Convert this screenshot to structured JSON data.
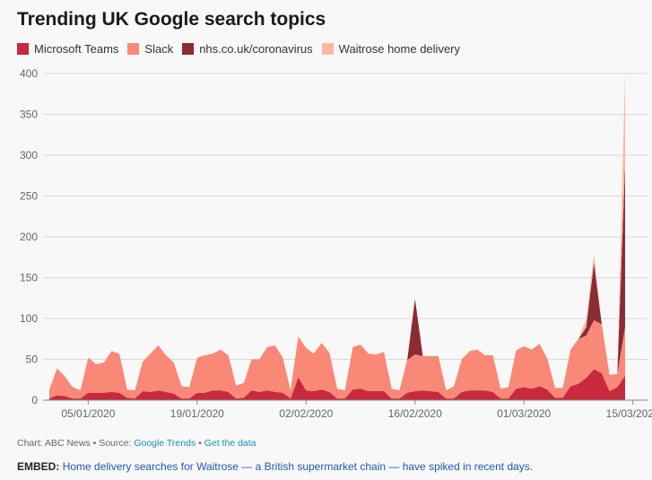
{
  "title": "Trending UK Google search topics",
  "legend": [
    {
      "label": "Microsoft Teams",
      "color": "#c8293d"
    },
    {
      "label": "Slack",
      "color": "#f98877"
    },
    {
      "label": "nhs.co.uk/coronavirus",
      "color": "#8b2b33"
    },
    {
      "label": "Waitrose home delivery",
      "color": "#fbb6a0"
    }
  ],
  "source": {
    "prefix": "Chart: ABC News • Source: ",
    "link1": "Google Trends",
    "sep": " • ",
    "link2": "Get the data"
  },
  "embed": {
    "label": "EMBED:",
    "text": "Home delivery searches for Waitrose — a British supermarket chain — have spiked in recent days."
  },
  "chart_data": {
    "type": "area",
    "stacked": true,
    "title": "Trending UK Google search topics",
    "ylim": [
      0,
      400
    ],
    "yticks": [
      0,
      50,
      100,
      150,
      200,
      250,
      300,
      350,
      400
    ],
    "xtick_labels": [
      "05/01/2020",
      "19/01/2020",
      "02/02/2020",
      "16/02/2020",
      "01/03/2020",
      "15/03/2020"
    ],
    "xtick_index": [
      5,
      19,
      33,
      47,
      61,
      75
    ],
    "x_start": "01/01/2020",
    "x_end": "15/03/2020",
    "grid": true,
    "legend_position": "top-left",
    "series": [
      {
        "name": "Microsoft Teams",
        "color": "#c8293d",
        "values": [
          2,
          6,
          5,
          2,
          2,
          9,
          9,
          9,
          10,
          9,
          3,
          2,
          11,
          10,
          12,
          10,
          8,
          2,
          2,
          9,
          9,
          12,
          12,
          10,
          2,
          3,
          12,
          10,
          12,
          10,
          9,
          2,
          28,
          12,
          11,
          13,
          10,
          2,
          2,
          13,
          14,
          11,
          11,
          11,
          2,
          2,
          9,
          11,
          12,
          11,
          10,
          2,
          2,
          10,
          12,
          12,
          12,
          10,
          2,
          2,
          14,
          16,
          14,
          17,
          13,
          3,
          3,
          17,
          20,
          27,
          38,
          33,
          11,
          16,
          30
        ]
      },
      {
        "name": "Slack",
        "color": "#f98877",
        "values": [
          11,
          33,
          24,
          14,
          10,
          43,
          35,
          37,
          50,
          48,
          10,
          10,
          36,
          47,
          55,
          45,
          38,
          15,
          14,
          43,
          46,
          45,
          50,
          45,
          16,
          18,
          38,
          40,
          53,
          57,
          43,
          10,
          50,
          52,
          46,
          57,
          48,
          12,
          10,
          52,
          54,
          46,
          45,
          48,
          12,
          10,
          40,
          45,
          42,
          43,
          44,
          10,
          15,
          40,
          48,
          50,
          43,
          45,
          12,
          14,
          47,
          50,
          48,
          52,
          38,
          12,
          12,
          45,
          55,
          52,
          60,
          60,
          20,
          16,
          60
        ]
      },
      {
        "name": "nhs.co.uk/coronavirus",
        "color": "#8b2b33",
        "values": [
          0,
          0,
          0,
          0,
          0,
          0,
          0,
          0,
          0,
          0,
          0,
          0,
          0,
          0,
          0,
          0,
          0,
          0,
          0,
          0,
          0,
          0,
          0,
          0,
          0,
          0,
          0,
          0,
          0,
          0,
          0,
          0,
          0,
          0,
          0,
          0,
          0,
          0,
          0,
          0,
          0,
          0,
          0,
          0,
          0,
          0,
          0,
          68,
          0,
          0,
          0,
          0,
          0,
          0,
          0,
          0,
          0,
          0,
          0,
          0,
          0,
          0,
          0,
          0,
          0,
          0,
          0,
          0,
          0,
          10,
          70,
          0,
          0,
          0,
          200
        ]
      },
      {
        "name": "Waitrose home delivery",
        "color": "#fbb6a0",
        "values": [
          0,
          0,
          0,
          0,
          0,
          0,
          0,
          0,
          0,
          0,
          0,
          0,
          0,
          0,
          0,
          0,
          0,
          0,
          0,
          0,
          0,
          0,
          0,
          0,
          0,
          0,
          0,
          0,
          0,
          0,
          0,
          0,
          0,
          0,
          0,
          0,
          0,
          0,
          0,
          0,
          0,
          0,
          0,
          0,
          0,
          0,
          0,
          0,
          0,
          0,
          0,
          0,
          0,
          0,
          0,
          0,
          0,
          0,
          0,
          0,
          0,
          0,
          0,
          0,
          0,
          0,
          0,
          0,
          0,
          10,
          10,
          0,
          0,
          0,
          110
        ]
      }
    ]
  }
}
